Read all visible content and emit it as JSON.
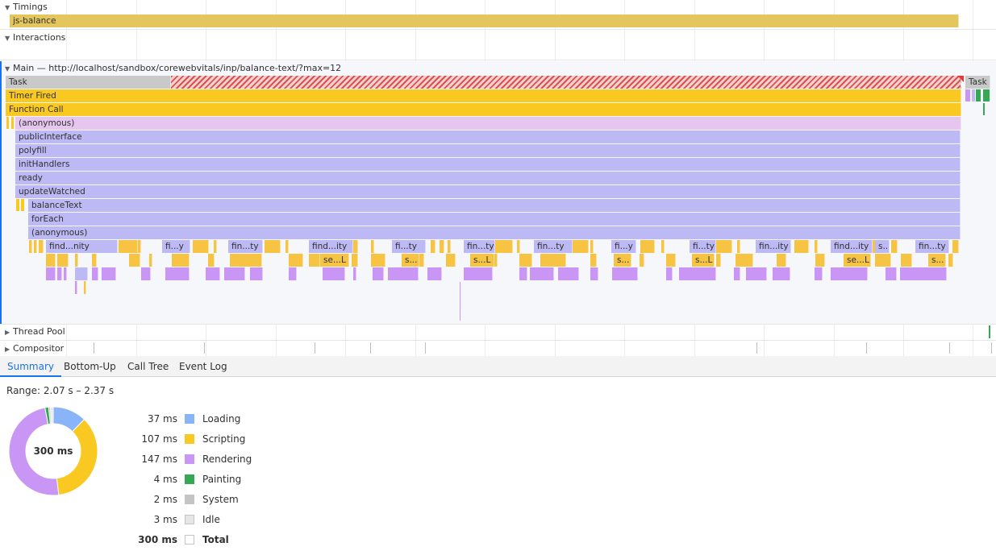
{
  "tracks": {
    "timings": "Timings",
    "timing_bar": "js-balance",
    "interactions": "Interactions",
    "main": "Main — http://localhost/sandbox/corewebvitals/inp/balance-text/?max=12",
    "thread_pool": "Thread Pool",
    "compositor": "Compositor"
  },
  "flame": {
    "task": "Task",
    "task_right": "Task",
    "timer_fired": "Timer Fired",
    "function_call": "Function Call",
    "anonymous1": "(anonymous)",
    "public_interface": "publicInterface",
    "polyfill": "polyfill",
    "init_handlers": "initHandlers",
    "ready": "ready",
    "update_watched": "updateWatched",
    "balance_text": "balanceText",
    "for_each": "forEach",
    "anonymous2": "(anonymous)",
    "row_find": [
      "find...nity",
      "fi...y",
      "fin...ty",
      "find...ity",
      "fi...ty",
      "fin...ty",
      "fin...ty",
      "fi...y",
      "fi...ty",
      "fin...ity",
      "find...ity",
      "s...",
      "fin...ty"
    ],
    "row_s": [
      "se...L",
      "s...",
      "s...L",
      "s...",
      "s...L",
      "se...L",
      "s..."
    ]
  },
  "tabs": [
    "Summary",
    "Bottom-Up",
    "Call Tree",
    "Event Log"
  ],
  "summary": {
    "range": "Range: 2.07 s – 2.37 s",
    "total_center": "300 ms",
    "legend": [
      {
        "value": "37 ms",
        "name": "Loading",
        "color": "#8ab4f8",
        "ms": 37
      },
      {
        "value": "107 ms",
        "name": "Scripting",
        "color": "#f9c922",
        "ms": 107
      },
      {
        "value": "147 ms",
        "name": "Rendering",
        "color": "#c996f5",
        "ms": 147
      },
      {
        "value": "4 ms",
        "name": "Painting",
        "color": "#34a853",
        "ms": 4
      },
      {
        "value": "2 ms",
        "name": "System",
        "color": "#c4c4c4",
        "ms": 2
      },
      {
        "value": "3 ms",
        "name": "Idle",
        "color": "#e6e6e6",
        "ms": 3
      },
      {
        "value": "300 ms",
        "name": "Total",
        "color": "#ffffff",
        "ms": 0
      }
    ]
  }
}
